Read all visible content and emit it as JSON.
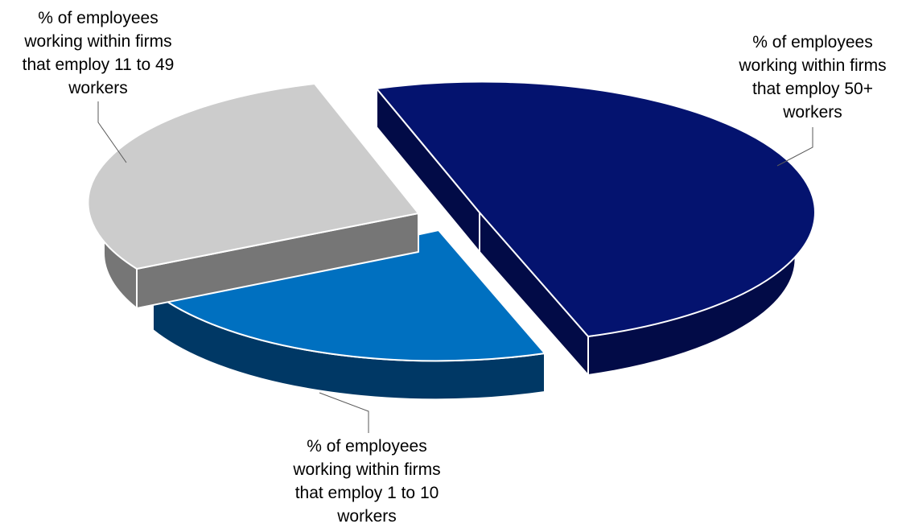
{
  "chart_data": {
    "type": "pie",
    "style": "3d-exploded",
    "slices": [
      {
        "label_lines": [
          "% of employees",
          "working within firms",
          "that employ 50+",
          "workers"
        ],
        "value": 47,
        "color_top": "#04136F",
        "color_side": "#020B47"
      },
      {
        "label_lines": [
          "% of employees",
          "working within firms",
          "that employ 1 to 10",
          "workers"
        ],
        "value": 20,
        "color_top": "#0070C0",
        "color_side": "#003865"
      },
      {
        "label_lines": [
          "% of employees",
          "working within firms",
          "that employ 11 to 49",
          "workers"
        ],
        "value": 33,
        "color_top": "#CCCCCC",
        "color_side": "#767676"
      }
    ],
    "legend": "none",
    "data_labels": "category-names-with-leader-lines"
  }
}
